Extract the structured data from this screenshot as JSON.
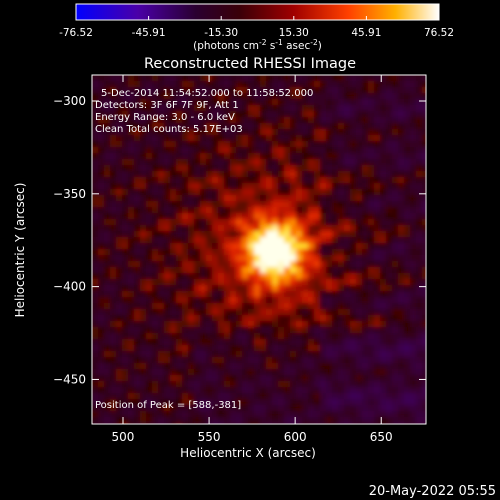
{
  "chart_data": {
    "type": "heatmap",
    "title": "Reconstructed RHESSI Image",
    "xlabel": "Heliocentric X (arcsec)",
    "ylabel": "Heliocentric Y (arcsec)",
    "xlim": [
      482,
      676
    ],
    "ylim": [
      -474,
      -286
    ],
    "x_ticks": [
      500,
      550,
      600,
      650
    ],
    "y_ticks": [
      -300,
      -350,
      -400,
      -450
    ],
    "colorbar": {
      "range": [
        -76.52,
        76.52
      ],
      "tick_values": [
        -76.52,
        -45.91,
        -15.3,
        15.3,
        45.91,
        76.52
      ],
      "tick_labels": [
        "-76.52",
        "-45.91",
        "-15.30",
        "15.30",
        "45.91",
        "76.52"
      ],
      "units_prefix": "(photons cm",
      "units_exp1": "-2",
      "units_mid": " s",
      "units_exp2": "-1",
      "units_mid2": " asec",
      "units_exp3": "-2",
      "units_suffix": ")"
    },
    "peak": {
      "x": 588,
      "y": -381,
      "value": 76.52
    },
    "annotations": [
      "5-Dec-2014 11:54:52.000 to 11:58:52.000",
      "Detectors: 3F 6F 7F 9F, Att 1",
      "Energy Range: 3.0 - 6.0 keV",
      "Clean    Total counts: 5.17E+03"
    ],
    "peak_label": "Position of Peak = [588,-381]",
    "footer_date": "20-May-2022 05:55"
  }
}
